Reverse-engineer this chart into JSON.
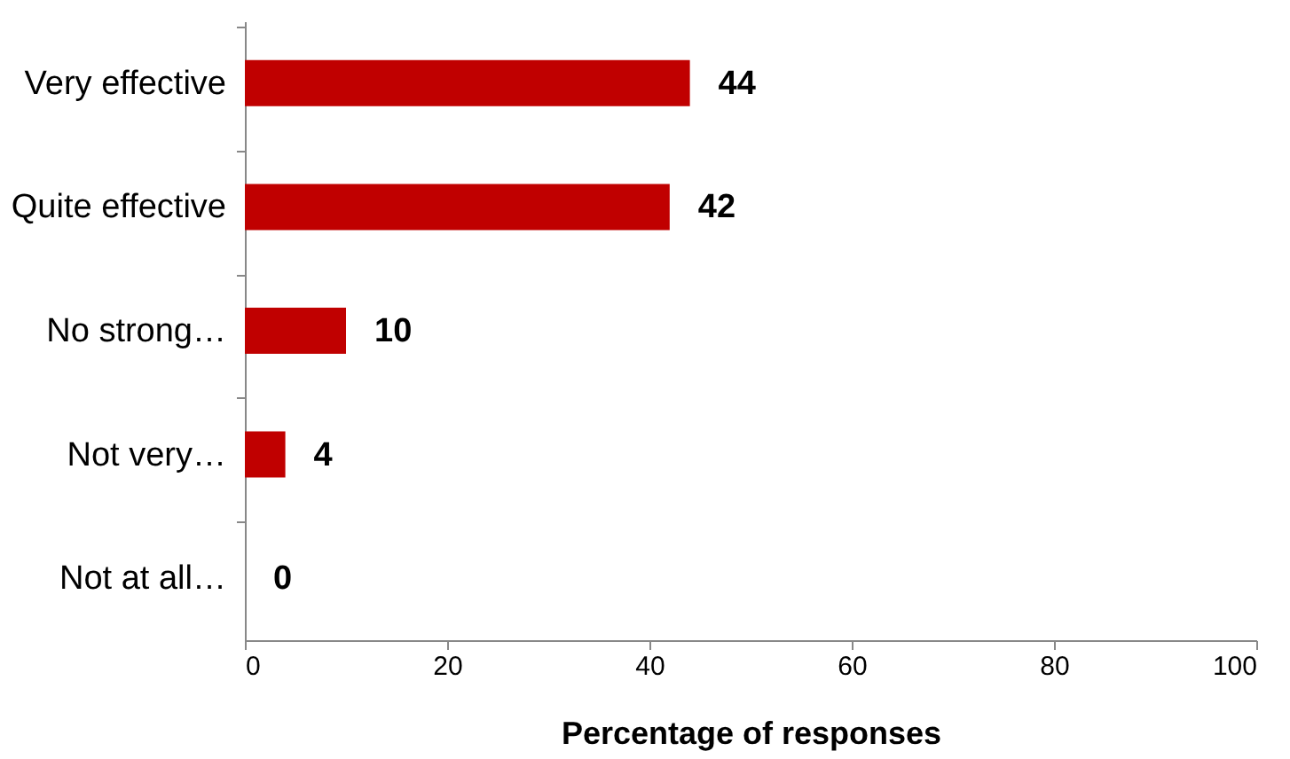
{
  "chart_data": {
    "type": "bar",
    "orientation": "horizontal",
    "xlabel": "Percentage of responses",
    "categories": [
      "Very effective",
      "Quite effective",
      "No strong…",
      "Not very…",
      "Not at all…"
    ],
    "values": [
      44,
      42,
      10,
      4,
      0
    ],
    "color": "#c00000",
    "xlim": [
      0,
      100
    ],
    "xticks": [
      0,
      20,
      40,
      60,
      80,
      100
    ],
    "grid": false,
    "data_labels": true
  }
}
